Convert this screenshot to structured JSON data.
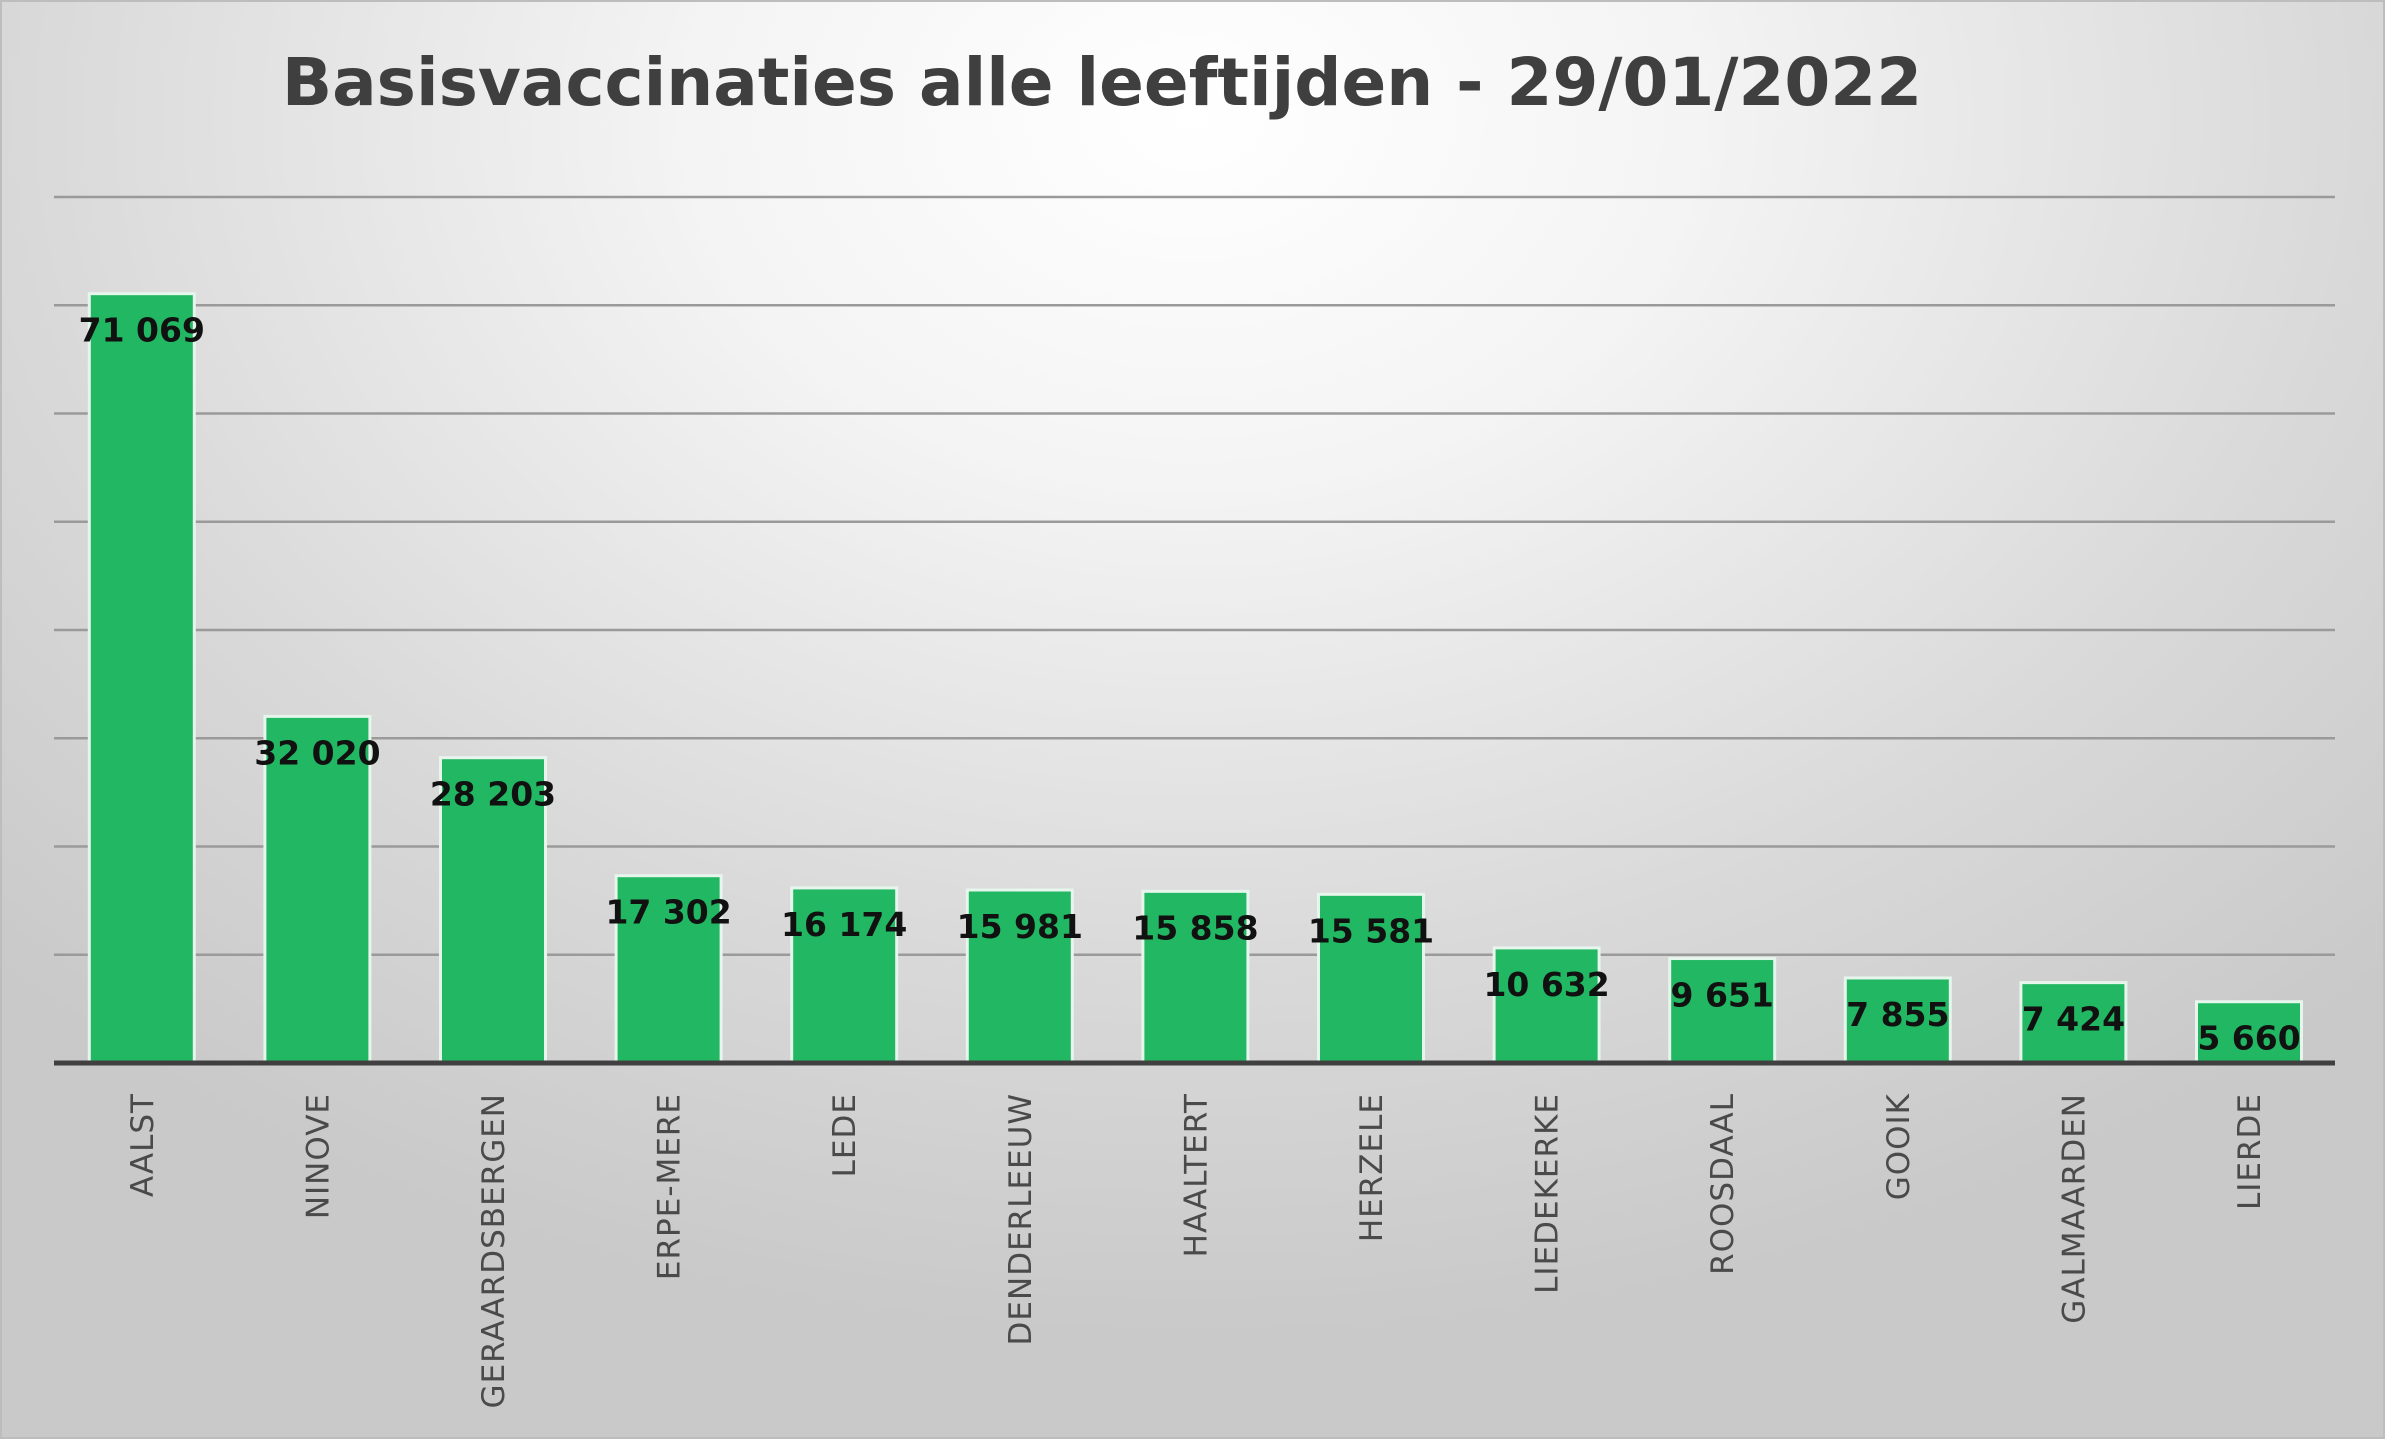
{
  "chart_data": {
    "type": "bar",
    "title": "Basisvaccinaties alle leeftijden - 29/01/2022",
    "categories": [
      "AALST",
      "NINOVE",
      "GERAARDSBERGEN",
      "ERPE-MERE",
      "LEDE",
      "DENDERLEEUW",
      "HAALTERT",
      "HERZELE",
      "LIEDEKERKE",
      "ROOSDAAL",
      "GOOIK",
      "GALMAARDEN",
      "LIERDE"
    ],
    "values": [
      71069,
      32020,
      28203,
      17302,
      16174,
      15981,
      15858,
      15581,
      10632,
      9651,
      7855,
      7424,
      5660
    ],
    "value_labels": [
      "71 069",
      "32 020",
      "28 203",
      "17 302",
      "16 174",
      "15 981",
      "15 858",
      "15 581",
      "10 632",
      "9 651",
      "7 855",
      "7 424",
      "5 660"
    ],
    "xlabel": "",
    "ylabel": "",
    "ylim": [
      0,
      80000
    ],
    "gridline_step": 10000,
    "grid": true,
    "legend": "none",
    "colors": {
      "bar": "#22b762",
      "bar_edge": "#e6f6ec",
      "title": "#3f3f3f",
      "grid": "#9a9a9a",
      "axis": "#404040"
    }
  }
}
